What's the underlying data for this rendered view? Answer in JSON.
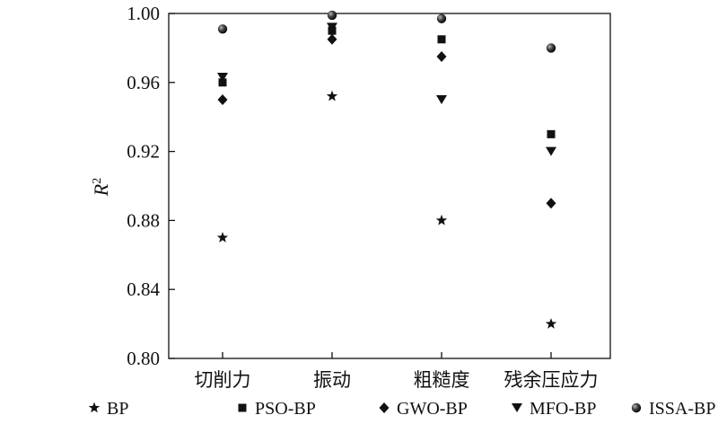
{
  "chart_data": {
    "type": "scatter",
    "categories": [
      "切削力",
      "振动",
      "粗糙度",
      "残余压应力"
    ],
    "ylabel": "R",
    "ylabel_sup": "2",
    "xlabel": "",
    "ylim": [
      0.8,
      1.0
    ],
    "yticks": [
      "0.80",
      "0.84",
      "0.88",
      "0.92",
      "0.96",
      "1.00"
    ],
    "grid": false,
    "legend_position": "bottom",
    "series": [
      {
        "name": "BP",
        "marker": "star",
        "values": [
          0.87,
          0.952,
          0.88,
          0.82
        ]
      },
      {
        "name": "PSO-BP",
        "marker": "square",
        "values": [
          0.96,
          0.99,
          0.985,
          0.93
        ]
      },
      {
        "name": "GWO-BP",
        "marker": "diamond",
        "values": [
          0.95,
          0.985,
          0.975,
          0.89
        ]
      },
      {
        "name": "MFO-BP",
        "marker": "triangle-down",
        "values": [
          0.963,
          0.992,
          0.95,
          0.92
        ]
      },
      {
        "name": "ISSA-BP",
        "marker": "sphere",
        "values": [
          0.991,
          0.999,
          0.997,
          0.98
        ]
      }
    ],
    "colors": {
      "marker": "#111111",
      "axis": "#111111"
    }
  }
}
